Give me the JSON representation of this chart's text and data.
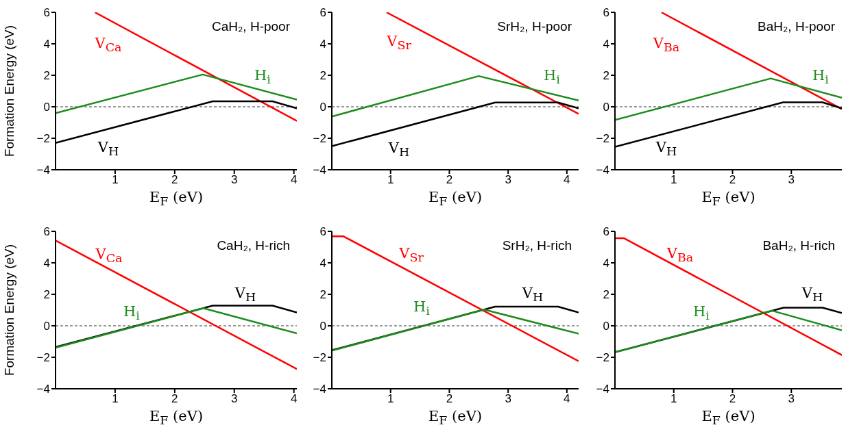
{
  "chart_data": [
    {
      "type": "line",
      "title": "CaH₂, H-poor",
      "xlabel": "E$_{F}$ (eV)",
      "ylabel": "Formation Energy (eV)",
      "xlim": [
        0,
        4.05
      ],
      "xticks": [
        1,
        2,
        3,
        4
      ],
      "ylim": [
        -4,
        6
      ],
      "yticks": [
        -4,
        -2,
        0,
        2,
        4,
        6
      ],
      "marker": "none",
      "ref_lines": [
        {
          "axis": "y",
          "value": 0,
          "color": "#000000",
          "line_style": "dashed"
        }
      ],
      "series": [
        {
          "name": "V$_{Ca}$",
          "color": "#ff0000",
          "x": [
            0.66,
            4.05
          ],
          "values": [
            6,
            -0.9
          ]
        },
        {
          "name": "V$_{H}$",
          "color": "#000000",
          "x": [
            0,
            2.64,
            3.64,
            4.05
          ],
          "values": [
            -2.3,
            0.35,
            0.35,
            -0.1
          ]
        },
        {
          "name": "H$_{i}$",
          "color": "#1e8c1e",
          "x": [
            0,
            2.47,
            4.05
          ],
          "values": [
            -0.4,
            2.05,
            0.45
          ]
        }
      ]
    },
    {
      "type": "line",
      "title": "SrH₂, H-poor",
      "xlabel": "E$_{F}$ (eV)",
      "xlim": [
        0,
        4.2
      ],
      "xticks": [
        1,
        2,
        3,
        4
      ],
      "ylim": [
        -4,
        6
      ],
      "yticks": [
        -4,
        -2,
        0,
        2,
        4,
        6
      ],
      "marker": "none",
      "ref_lines": [
        {
          "axis": "y",
          "value": 0,
          "color": "#000000",
          "line_style": "dashed"
        }
      ],
      "series": [
        {
          "name": "V$_{Sr}$",
          "color": "#ff0000",
          "x": [
            0.93,
            4.2
          ],
          "values": [
            6,
            -0.45
          ]
        },
        {
          "name": "V$_{H}$",
          "color": "#000000",
          "x": [
            0,
            2.78,
            3.85,
            4.2
          ],
          "values": [
            -2.5,
            0.27,
            0.27,
            -0.1
          ]
        },
        {
          "name": "H$_{i}$",
          "color": "#1e8c1e",
          "x": [
            0,
            2.5,
            4.2
          ],
          "values": [
            -0.62,
            1.95,
            0.4
          ]
        }
      ]
    },
    {
      "type": "line",
      "title": "BaH₂, H-poor",
      "xlabel": "E$_{F}$ (eV)",
      "xlim": [
        0,
        3.86
      ],
      "xticks": [
        1,
        2,
        3
      ],
      "ylim": [
        -4,
        6
      ],
      "yticks": [
        -4,
        -2,
        0,
        2,
        4,
        6
      ],
      "marker": "none",
      "ref_lines": [
        {
          "axis": "y",
          "value": 0,
          "color": "#000000",
          "line_style": "dashed"
        }
      ],
      "series": [
        {
          "name": "V$_{Ba}$",
          "color": "#ff0000",
          "x": [
            0.79,
            3.86
          ],
          "values": [
            6,
            -0.15
          ]
        },
        {
          "name": "V$_{H}$",
          "color": "#000000",
          "x": [
            0,
            2.86,
            3.53,
            3.86
          ],
          "values": [
            -2.55,
            0.28,
            0.28,
            -0.1
          ]
        },
        {
          "name": "H$_{i}$",
          "color": "#1e8c1e",
          "x": [
            0,
            2.65,
            3.86
          ],
          "values": [
            -0.84,
            1.8,
            0.57
          ]
        }
      ]
    },
    {
      "type": "line",
      "title": "CaH₂, H-rich",
      "xlabel": "E$_{F}$ (eV)",
      "ylabel": "Formation Energy (eV)",
      "xlim": [
        0,
        4.05
      ],
      "xticks": [
        1,
        2,
        3,
        4
      ],
      "ylim": [
        -4,
        6
      ],
      "yticks": [
        -4,
        -2,
        0,
        2,
        4,
        6
      ],
      "marker": "none",
      "ref_lines": [
        {
          "axis": "y",
          "value": 0,
          "color": "#000000",
          "line_style": "dashed"
        }
      ],
      "series": [
        {
          "name": "V$_{Ca}$",
          "color": "#ff0000",
          "x": [
            0,
            4.05
          ],
          "values": [
            5.42,
            -2.75
          ]
        },
        {
          "name": "V$_{H}$",
          "color": "#000000",
          "x": [
            0,
            2.64,
            3.64,
            4.05
          ],
          "values": [
            -1.35,
            1.28,
            1.28,
            0.85
          ]
        },
        {
          "name": "H$_{i}$",
          "color": "#1e8c1e",
          "x": [
            0,
            2.48,
            4.05
          ],
          "values": [
            -1.39,
            1.12,
            -0.48
          ]
        }
      ]
    },
    {
      "type": "line",
      "title": "SrH₂, H-rich",
      "xlabel": "E$_{F}$ (eV)",
      "xlim": [
        0,
        4.2
      ],
      "xticks": [
        1,
        2,
        3,
        4
      ],
      "ylim": [
        -4,
        6
      ],
      "yticks": [
        -4,
        -2,
        0,
        2,
        4,
        6
      ],
      "marker": "none",
      "ref_lines": [
        {
          "axis": "y",
          "value": 0,
          "color": "#000000",
          "line_style": "dashed"
        }
      ],
      "series": [
        {
          "name": "V$_{Sr}$",
          "color": "#ff0000",
          "x": [
            0,
            0.2,
            4.2
          ],
          "values": [
            5.68,
            5.68,
            -2.25
          ]
        },
        {
          "name": "V$_{H}$",
          "color": "#000000",
          "x": [
            0,
            2.78,
            3.85,
            4.2
          ],
          "values": [
            -1.55,
            1.22,
            1.22,
            0.85
          ]
        },
        {
          "name": "H$_{i}$",
          "color": "#1e8c1e",
          "x": [
            0,
            2.59,
            4.2
          ],
          "values": [
            -1.58,
            1.03,
            -0.5
          ]
        }
      ]
    },
    {
      "type": "line",
      "title": "BaH₂, H-rich",
      "xlabel": "E$_{F}$ (eV)",
      "xlim": [
        0,
        3.86
      ],
      "xticks": [
        1,
        2,
        3
      ],
      "ylim": [
        -4,
        6
      ],
      "yticks": [
        -4,
        -2,
        0,
        2,
        4,
        6
      ],
      "marker": "none",
      "ref_lines": [
        {
          "axis": "y",
          "value": 0,
          "color": "#000000",
          "line_style": "dashed"
        }
      ],
      "series": [
        {
          "name": "V$_{Ba}$",
          "color": "#ff0000",
          "x": [
            0,
            0.15,
            3.86
          ],
          "values": [
            5.57,
            5.57,
            -1.86
          ]
        },
        {
          "name": "V$_{H}$",
          "color": "#000000",
          "x": [
            0,
            2.87,
            3.53,
            3.86
          ],
          "values": [
            -1.68,
            1.15,
            1.15,
            0.81
          ]
        },
        {
          "name": "H$_{i}$",
          "color": "#1e8c1e",
          "x": [
            0,
            2.67,
            3.86
          ],
          "values": [
            -1.68,
            0.96,
            -0.28
          ]
        }
      ]
    }
  ]
}
